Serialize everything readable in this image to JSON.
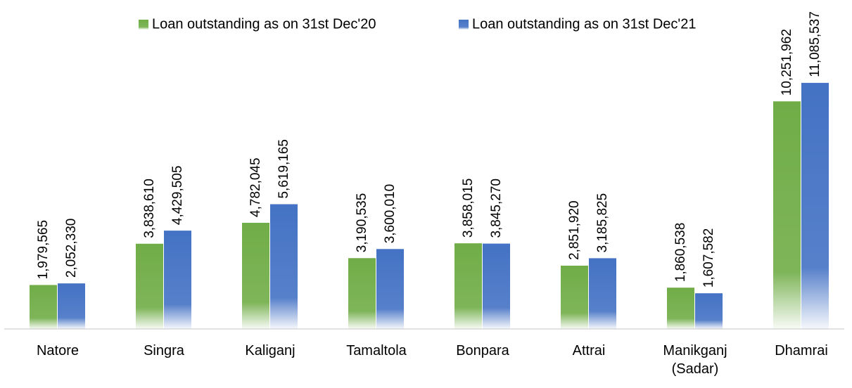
{
  "chart_data": {
    "type": "bar",
    "categories": [
      "Natore",
      "Singra",
      "Kaliganj",
      "Tamaltola",
      "Bonpara",
      "Attrai",
      "Manikganj (Sadar)",
      "Dhamrai"
    ],
    "series": [
      {
        "name": "Loan outstanding as on 31st Dec'20",
        "color": "#70ad47",
        "values": [
          1979565,
          3838610,
          4782045,
          3190535,
          3858015,
          2851920,
          1860538,
          10251962
        ],
        "value_labels": [
          "1,979,565",
          "3,838,610",
          "4,782,045",
          "3,190,535",
          "3,858,015",
          "2,851,920",
          "1,860,538",
          "10,251,962"
        ]
      },
      {
        "name": "Loan outstanding as on 31st Dec'21",
        "color": "#4472c4",
        "values": [
          2052330,
          4429505,
          5619165,
          3600010,
          3845270,
          3185825,
          1607582,
          11085537
        ],
        "value_labels": [
          "2,052,330",
          "4,429,505",
          "5,619,165",
          "3,600,010",
          "3,845,270",
          "3,185,825",
          "1,607,582",
          "11,085,537"
        ]
      }
    ],
    "ylim": [
      0,
      12000000
    ],
    "legend": "top"
  }
}
